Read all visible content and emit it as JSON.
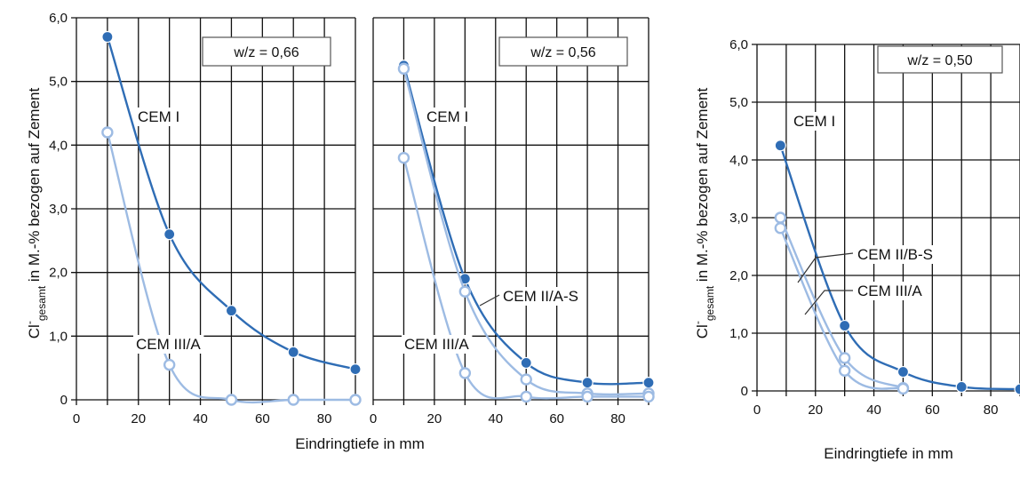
{
  "figure": {
    "xlabel": "Eindringtiefe in mm",
    "ylabel_main": "Cl",
    "ylabel_sup": "-",
    "ylabel_sub": "gesamt",
    "ylabel_rest": " in M.-% bezogen auf Zement"
  },
  "colors": {
    "dark": "#2f6db5",
    "light": "#9dbbe3",
    "grid": "#111111"
  },
  "chart_data": [
    {
      "type": "line",
      "box_label": "w/z = 0,66",
      "xlabel": "",
      "ylabel": "Cl-gesamt in M.-% bezogen auf Zement",
      "xlim": [
        0,
        90
      ],
      "ylim": [
        0,
        6
      ],
      "xticks": [
        "0",
        "20",
        "40",
        "60",
        "80"
      ],
      "yticks": [
        "0",
        "1,0",
        "2,0",
        "3,0",
        "4,0",
        "5,0",
        "6,0"
      ],
      "grid": true,
      "series": [
        {
          "name": "CEM I",
          "color": "dark",
          "x": [
            10,
            30,
            50,
            70,
            90
          ],
          "y": [
            5.7,
            2.6,
            1.4,
            0.75,
            0.48
          ]
        },
        {
          "name": "CEM III/A",
          "color": "light",
          "x": [
            10,
            30,
            50,
            70,
            90
          ],
          "y": [
            4.2,
            0.55,
            0.0,
            0.0,
            0.0
          ]
        }
      ]
    },
    {
      "type": "line",
      "box_label": "w/z = 0,56",
      "xlabel": "",
      "ylabel": "",
      "xlim": [
        0,
        90
      ],
      "ylim": [
        0,
        6
      ],
      "xticks": [
        "0",
        "20",
        "40",
        "60",
        "80"
      ],
      "yticks": [],
      "grid": true,
      "series": [
        {
          "name": "CEM I",
          "color": "dark",
          "x": [
            10,
            30,
            50,
            70,
            90
          ],
          "y": [
            5.25,
            1.9,
            0.58,
            0.27,
            0.27
          ]
        },
        {
          "name": "CEM II/A-S",
          "color": "light",
          "x": [
            10,
            30,
            50,
            70,
            90
          ],
          "y": [
            5.2,
            1.7,
            0.32,
            0.1,
            0.1
          ]
        },
        {
          "name": "CEM III/A",
          "color": "light",
          "x": [
            10,
            30,
            50,
            70,
            90
          ],
          "y": [
            3.8,
            0.42,
            0.05,
            0.05,
            0.05
          ]
        }
      ]
    },
    {
      "type": "line",
      "box_label": "w/z = 0,50",
      "xlabel": "",
      "ylabel": "Cl-gesamt in M.-% bezogen auf Zement",
      "xlim": [
        0,
        90
      ],
      "ylim": [
        0,
        6
      ],
      "xticks": [
        "0",
        "20",
        "40",
        "60",
        "80"
      ],
      "yticks": [
        "0",
        "1,0",
        "2,0",
        "3,0",
        "4,0",
        "5,0",
        "6,0"
      ],
      "grid": true,
      "series": [
        {
          "name": "CEM I",
          "color": "dark",
          "x": [
            8,
            30,
            50,
            70,
            90
          ],
          "y": [
            4.25,
            1.13,
            0.33,
            0.07,
            0.03
          ]
        },
        {
          "name": "CEM II/B-S",
          "color": "light",
          "x": [
            8,
            30,
            50
          ],
          "y": [
            3.0,
            0.57,
            0.05
          ]
        },
        {
          "name": "CEM III/A",
          "color": "light",
          "x": [
            8,
            30,
            50
          ],
          "y": [
            2.82,
            0.35,
            0.04
          ]
        }
      ]
    }
  ]
}
